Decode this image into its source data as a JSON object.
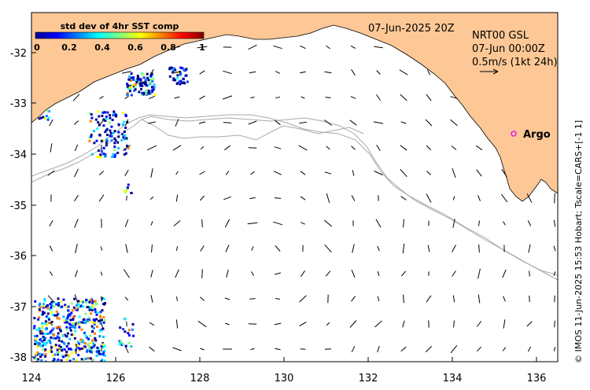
{
  "map": {
    "date_label": "07-Jun-2025 20Z",
    "product": "NRT00 GSL",
    "valid_time": "07-Jun 00:00Z",
    "scale_label": "0.5m/s (1kt 24h)",
    "station_label": "Argo",
    "side_credit": "© IMOS 11-Jun-2025 15:53 Hobart; Tscale=CARS+[-1 1]",
    "land_color": "#FDC896",
    "coast_color": "#000000",
    "marker_color": "#E020E0",
    "contour_color": "#A9A9A9",
    "x_ticks": [
      "124",
      "126",
      "128",
      "130",
      "132",
      "134",
      "136"
    ],
    "y_ticks": [
      "-32",
      "-33",
      "-34",
      "-35",
      "-36",
      "-37",
      "-38"
    ],
    "lon_range": [
      124,
      136.5
    ],
    "lat_range": [
      -38.1,
      -31.2
    ]
  },
  "colorbar": {
    "title": "std dev of 4hr SST comp",
    "ticks": [
      "0",
      "0.2",
      "0.4",
      "0.6",
      "0.8",
      "1"
    ],
    "colors": [
      "#00008F",
      "#0000FF",
      "#0080FF",
      "#00FFFF",
      "#80FF80",
      "#FFFF00",
      "#FF8000",
      "#FF0000",
      "#800000"
    ]
  },
  "icons": {
    "marker": "circle-marker-icon",
    "scale_arrow": "arrow-right-icon"
  }
}
